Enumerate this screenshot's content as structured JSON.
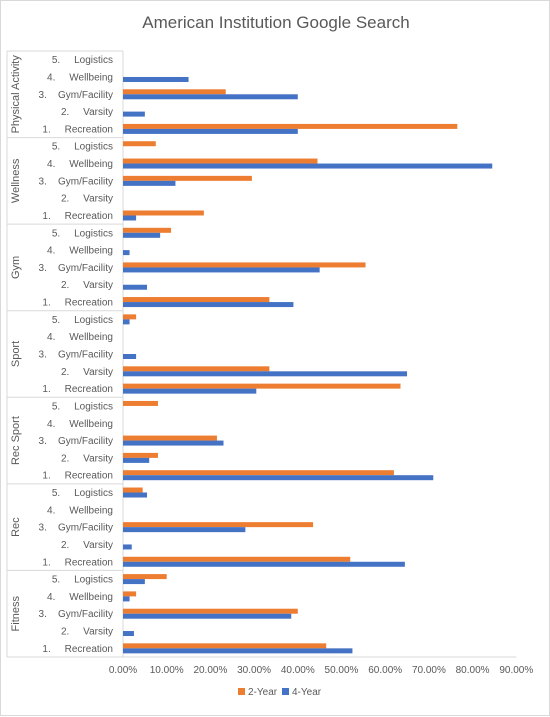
{
  "chart_data": {
    "type": "bar",
    "orientation": "horizontal",
    "title": "American Institution Google Search",
    "xlim": [
      0,
      90
    ],
    "x_ticks": [
      "0.00%",
      "10.00%",
      "20.00%",
      "30.00%",
      "40.00%",
      "50.00%",
      "60.00%",
      "70.00%",
      "80.00%",
      "90.00%"
    ],
    "categories": [
      "5.     Logistics",
      "4.     Wellbeing",
      "3.    Gym/Facility",
      "2.     Varsity",
      "1.     Recreation"
    ],
    "series_names": [
      "2-Year",
      "4-Year"
    ],
    "colors": {
      "2-Year": "#ED7D31",
      "4-Year": "#4472C4"
    },
    "legend_position": "bottom",
    "groups": [
      {
        "name": "Physical Activity",
        "two_year": [
          0,
          0,
          23.5,
          0,
          76.5
        ],
        "four_year": [
          0,
          15,
          40,
          5,
          40
        ]
      },
      {
        "name": "Wellness",
        "two_year": [
          7.5,
          44.5,
          29.5,
          0,
          18.5
        ],
        "four_year": [
          0,
          84.5,
          12,
          0,
          3
        ]
      },
      {
        "name": "Gym",
        "two_year": [
          11,
          0,
          55.5,
          0,
          33.5
        ],
        "four_year": [
          8.5,
          1.5,
          45,
          5.5,
          39
        ]
      },
      {
        "name": "Sport",
        "two_year": [
          3,
          0,
          0,
          33.5,
          63.5
        ],
        "four_year": [
          1.5,
          0,
          3,
          65,
          30.5
        ]
      },
      {
        "name": "Rec Sport",
        "two_year": [
          8,
          0,
          21.5,
          8,
          62
        ],
        "four_year": [
          0,
          0,
          23,
          6,
          71
        ]
      },
      {
        "name": "Rec",
        "two_year": [
          4.5,
          0,
          43.5,
          0,
          52
        ],
        "four_year": [
          5.5,
          0,
          28,
          2,
          64.5
        ]
      },
      {
        "name": "Fitness",
        "two_year": [
          10,
          3,
          40,
          0,
          46.5
        ],
        "four_year": [
          5,
          1.5,
          38.5,
          2.5,
          52.5
        ]
      }
    ]
  }
}
